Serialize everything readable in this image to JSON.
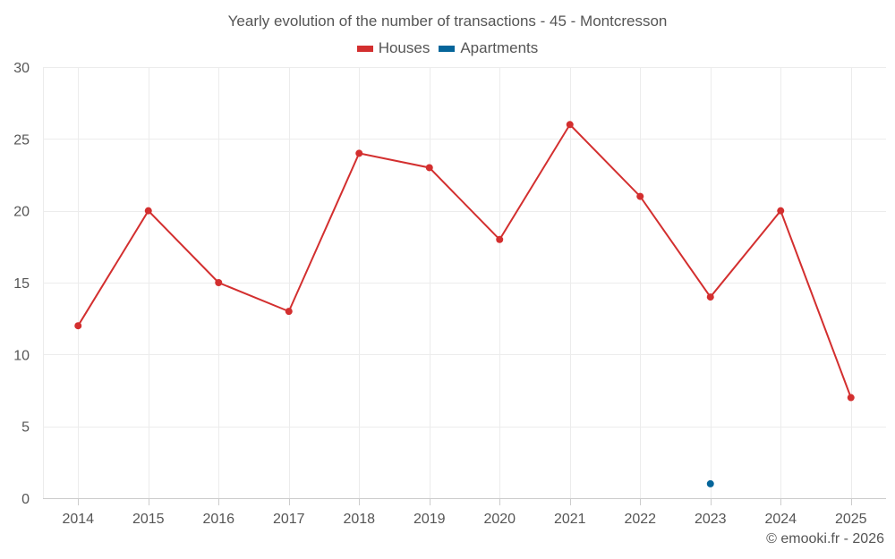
{
  "chart_data": {
    "type": "line",
    "title": "Yearly evolution of the number of transactions - 45 - Montcresson",
    "categories": [
      "2014",
      "2015",
      "2016",
      "2017",
      "2018",
      "2019",
      "2020",
      "2021",
      "2022",
      "2023",
      "2024",
      "2025"
    ],
    "series": [
      {
        "name": "Houses",
        "color": "#d32f2f",
        "values": [
          12,
          20,
          15,
          13,
          24,
          23,
          18,
          26,
          21,
          14,
          20,
          7
        ]
      },
      {
        "name": "Apartments",
        "color": "#05659a",
        "values": [
          null,
          null,
          null,
          null,
          null,
          null,
          null,
          null,
          null,
          1,
          null,
          null
        ]
      }
    ],
    "ylim": [
      0,
      30
    ],
    "yticks": [
      "0",
      "5",
      "10",
      "15",
      "20",
      "25",
      "30"
    ],
    "grid": true,
    "legend_position": "top-center",
    "xlabel": "",
    "ylabel": ""
  },
  "credit": "© emooki.fr - 2026"
}
